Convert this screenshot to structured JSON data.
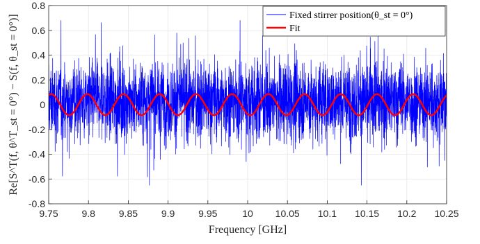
{
  "chart_data": {
    "type": "line",
    "xlabel": "Frequency [GHz]",
    "ylabel": "Re[S^T(f, θ^T_st = 0°) − S(f, θ_st = 0°)]",
    "xlim": [
      9.75,
      10.25
    ],
    "ylim": [
      -0.8,
      0.8
    ],
    "x_ticks": [
      9.75,
      9.8,
      9.85,
      9.9,
      9.95,
      10,
      10.05,
      10.1,
      10.15,
      10.2,
      10.25
    ],
    "x_tick_labels": [
      "9.75",
      "9.8",
      "9.85",
      "9.9",
      "9.95",
      "10",
      "10.05",
      "10.1",
      "10.15",
      "10.2",
      "10.25"
    ],
    "y_ticks": [
      -0.8,
      -0.6,
      -0.4,
      -0.2,
      0,
      0.2,
      0.4,
      0.6,
      0.8
    ],
    "y_tick_labels": [
      "-0.8",
      "-0.6",
      "-0.4",
      "-0.2",
      "0",
      "0.2",
      "0.4",
      "0.6",
      "0.8"
    ],
    "grid": true,
    "legend_position": "top-right",
    "series": [
      {
        "name": "Fixed stirrer position(θ_st = 0°)",
        "color": "#0000ff",
        "kind": "noisy",
        "typical_range": [
          -0.4,
          0.5
        ],
        "extremes": [
          -0.65,
          0.68
        ]
      },
      {
        "name": "Fit",
        "color": "#ff0000",
        "kind": "sinusoid",
        "amplitude": 0.085,
        "period_ghz": 0.0455,
        "offset": 0
      }
    ]
  }
}
